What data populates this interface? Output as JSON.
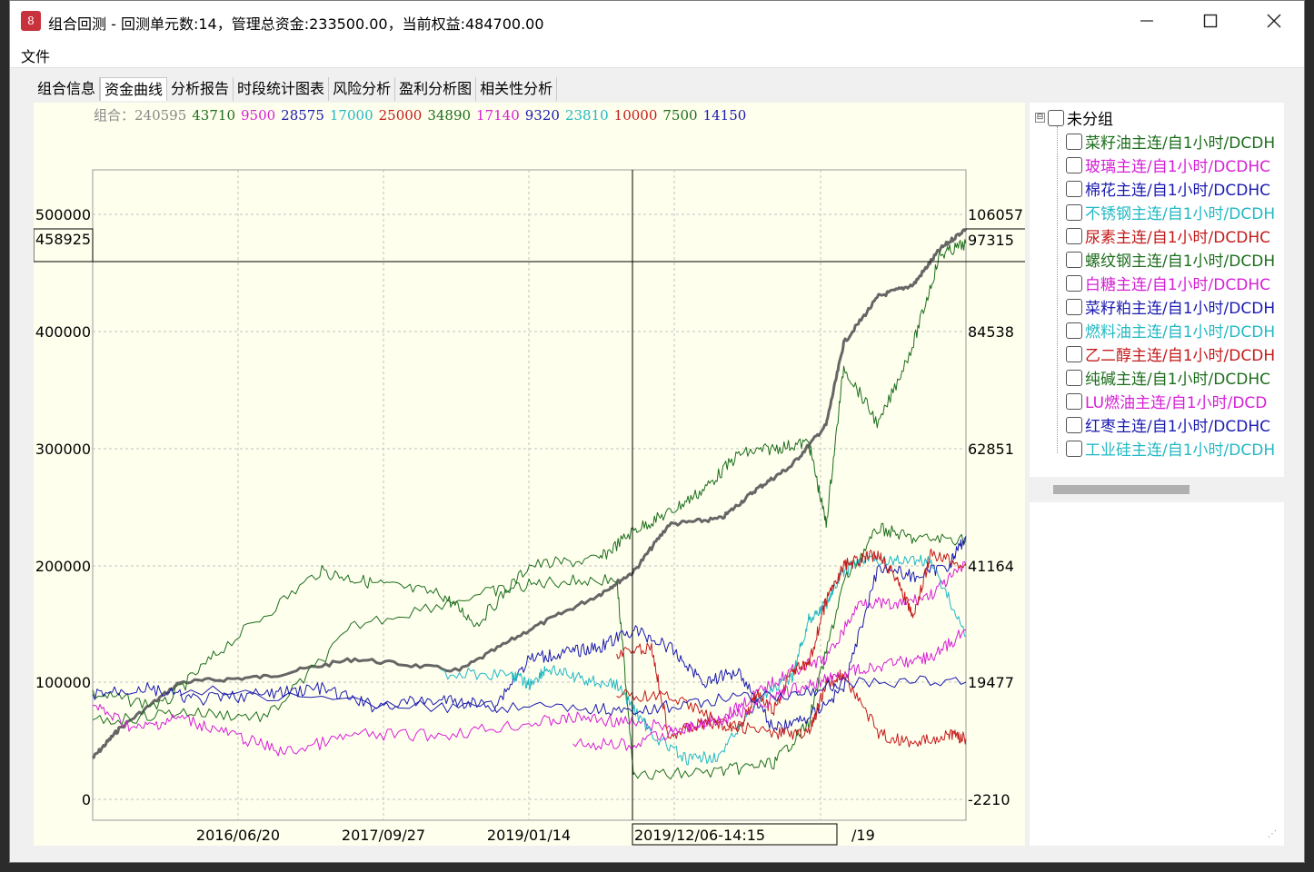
{
  "window": {
    "title": "组合回测 - 回测单元数:14，管理总资金:233500.00，当前权益:484700.00",
    "minimize_icon": "minimize-icon",
    "maximize_icon": "maximize-icon",
    "close_icon": "close-icon"
  },
  "menu": {
    "file": "文件"
  },
  "tabs": [
    "组合信息",
    "资金曲线",
    "分析报告",
    "时段统计图表",
    "风险分析",
    "盈利分析图",
    "相关性分析"
  ],
  "active_tab": 1,
  "legend": [
    {
      "text": "组合：240595",
      "color": "#888888"
    },
    {
      "text": "43710",
      "color": "#1c6e1c"
    },
    {
      "text": "9500",
      "color": "#d61fd6"
    },
    {
      "text": "28575",
      "color": "#1a1ab0"
    },
    {
      "text": "17000",
      "color": "#22b8c4"
    },
    {
      "text": "25000",
      "color": "#c41a1a"
    },
    {
      "text": "34890",
      "color": "#1c6e1c"
    },
    {
      "text": "17140",
      "color": "#d61fd6"
    },
    {
      "text": "9320",
      "color": "#1a1ab0"
    },
    {
      "text": "23810",
      "color": "#22b8c4"
    },
    {
      "text": "10000",
      "color": "#c41a1a"
    },
    {
      "text": "7500",
      "color": "#1c6e1c"
    },
    {
      "text": "14150",
      "color": "#1a1ab0"
    }
  ],
  "crosshair": {
    "left_value": "458925",
    "right_value": "97315",
    "date_label": "2019/12/06-14:15"
  },
  "chart_data": {
    "type": "line",
    "left_ticks": [
      "500000",
      "400000",
      "300000",
      "200000",
      "100000",
      "0"
    ],
    "right_ticks": [
      "106057",
      "84538",
      "62851",
      "41164",
      "19477",
      "-2210"
    ],
    "x_ticks": [
      "2016/06/20",
      "2017/09/27",
      "2019/01/14",
      "/19"
    ],
    "left_ylim": [
      0,
      500000
    ],
    "right_ylim": [
      -2210,
      106057
    ],
    "grid": true,
    "series": [
      {
        "color": "#666666",
        "width": 3,
        "axis": "left",
        "x": [
          0,
          0.03,
          0.1,
          0.2,
          0.3,
          0.42,
          0.5,
          0.58,
          0.62,
          0.66,
          0.72,
          0.76,
          0.8,
          0.84,
          0.86,
          0.9,
          0.94,
          0.97,
          1.0
        ],
        "y": [
          35000,
          60000,
          100000,
          105000,
          120000,
          110000,
          145000,
          175000,
          195000,
          235000,
          240000,
          265000,
          285000,
          320000,
          390000,
          430000,
          440000,
          470000,
          488000
        ]
      },
      {
        "color": "#1c6e1c",
        "width": 1,
        "axis": "left",
        "x": [
          0,
          0.08,
          0.15,
          0.26,
          0.32,
          0.4,
          0.44,
          0.5,
          0.58,
          0.62,
          0.66,
          0.7,
          0.74,
          0.78,
          0.82,
          0.84,
          0.86,
          0.9,
          0.94,
          0.97,
          1.0
        ],
        "y": [
          90000,
          80000,
          130000,
          195000,
          185000,
          175000,
          150000,
          200000,
          205000,
          230000,
          245000,
          265000,
          295000,
          300000,
          305000,
          235000,
          370000,
          320000,
          390000,
          465000,
          475000
        ]
      },
      {
        "color": "#1c6e1c",
        "width": 1,
        "axis": "right",
        "x": [
          0.0,
          0.1,
          0.2,
          0.3,
          0.45,
          0.52,
          0.6,
          0.62,
          0.72,
          0.78,
          0.82,
          0.86,
          0.9,
          0.94,
          1.0
        ],
        "y": [
          12000,
          14000,
          13000,
          30000,
          36000,
          38000,
          38500,
          2000,
          3000,
          4500,
          12000,
          38000,
          48000,
          46000,
          46000
        ]
      },
      {
        "color": "#d61fd6",
        "width": 1,
        "axis": "left",
        "x": [
          0,
          0.05,
          0.1,
          0.16,
          0.22,
          0.3,
          0.4,
          0.5,
          0.56,
          0.62,
          0.68,
          0.72,
          0.76,
          0.8,
          0.84,
          0.88,
          0.92,
          0.96,
          1.0
        ],
        "y": [
          80000,
          60000,
          70000,
          55000,
          40000,
          55000,
          55000,
          65000,
          70000,
          65000,
          60000,
          70000,
          90000,
          110000,
          120000,
          170000,
          165000,
          175000,
          200000
        ]
      },
      {
        "color": "#1a1ab0",
        "width": 1,
        "axis": "left",
        "x": [
          0,
          0.06,
          0.12,
          0.2,
          0.26,
          0.32,
          0.4,
          0.46,
          0.5,
          0.54,
          0.58,
          0.62,
          0.66,
          0.7,
          0.74,
          0.78,
          0.82,
          0.86,
          0.9,
          0.94,
          0.98,
          1.0
        ],
        "y": [
          90000,
          95000,
          85000,
          90000,
          95000,
          80000,
          85000,
          80000,
          120000,
          125000,
          130000,
          145000,
          130000,
          100000,
          110000,
          60000,
          70000,
          95000,
          200000,
          190000,
          200000,
          225000
        ]
      },
      {
        "color": "#22b8c4",
        "width": 1,
        "axis": "right",
        "x": [
          0.4,
          0.48,
          0.5,
          0.52,
          0.56,
          0.6,
          0.64,
          0.68,
          0.72,
          0.76,
          0.8,
          0.82,
          0.84,
          0.86,
          0.88,
          0.92,
          0.96,
          1.0
        ],
        "y": [
          21000,
          21000,
          19000,
          22000,
          20000,
          19000,
          10000,
          5000,
          6000,
          16000,
          20000,
          31000,
          34000,
          40000,
          42000,
          42000,
          42000,
          28000
        ]
      },
      {
        "color": "#c41a1a",
        "width": 1,
        "axis": "left",
        "x": [
          0.6,
          0.64,
          0.66,
          0.7,
          0.74,
          0.76,
          0.78,
          0.8,
          0.82,
          0.84,
          0.86,
          0.88,
          0.9,
          0.92,
          0.94,
          0.96,
          1.0
        ],
        "y": [
          125000,
          130000,
          55000,
          65000,
          60000,
          90000,
          75000,
          110000,
          115000,
          170000,
          200000,
          205000,
          210000,
          190000,
          155000,
          210000,
          200000
        ]
      },
      {
        "color": "#c41a1a",
        "width": 1,
        "axis": "right",
        "x": [
          0.6,
          0.66,
          0.72,
          0.78,
          0.82,
          0.84,
          0.86,
          0.9,
          0.94,
          0.98,
          1.0
        ],
        "y": [
          17000,
          17000,
          12000,
          10000,
          10000,
          19000,
          21000,
          10000,
          8000,
          10000,
          9000
        ]
      },
      {
        "color": "#d61fd6",
        "width": 1,
        "axis": "right",
        "x": [
          0.55,
          0.62,
          0.68,
          0.72,
          0.76,
          0.8,
          0.84,
          0.88,
          0.92,
          0.96,
          1.0
        ],
        "y": [
          8000,
          8000,
          11000,
          12000,
          15000,
          18000,
          20000,
          22000,
          23000,
          24000,
          29000
        ]
      },
      {
        "color": "#1a1ab0",
        "width": 1,
        "axis": "right",
        "x": [
          0.1,
          0.4,
          0.55,
          0.62,
          0.7,
          0.8,
          0.86,
          1.0
        ],
        "y": [
          18000,
          15000,
          15000,
          14000,
          16000,
          17000,
          19477,
          19477
        ]
      }
    ]
  },
  "tree": {
    "root_label": "未分组",
    "expander": "⊟",
    "items": [
      {
        "label": "菜籽油主连/自1小时/DCDH",
        "color": "#1c6e1c"
      },
      {
        "label": "玻璃主连/自1小时/DCDHC",
        "color": "#d61fd6"
      },
      {
        "label": "棉花主连/自1小时/DCDHC",
        "color": "#1a1ab0"
      },
      {
        "label": "不锈钢主连/自1小时/DCDH",
        "color": "#22b8c4"
      },
      {
        "label": "尿素主连/自1小时/DCDHC",
        "color": "#c41a1a"
      },
      {
        "label": "螺纹钢主连/自1小时/DCDH",
        "color": "#1c6e1c"
      },
      {
        "label": "白糖主连/自1小时/DCDHC",
        "color": "#d61fd6"
      },
      {
        "label": "菜籽粕主连/自1小时/DCDH",
        "color": "#1a1ab0"
      },
      {
        "label": "燃料油主连/自1小时/DCDH",
        "color": "#22b8c4"
      },
      {
        "label": "乙二醇主连/自1小时/DCDH",
        "color": "#c41a1a"
      },
      {
        "label": "纯碱主连/自1小时/DCDHC",
        "color": "#1c6e1c"
      },
      {
        "label": "LU燃油主连/自1小时/DCD",
        "color": "#d61fd6"
      },
      {
        "label": "红枣主连/自1小时/DCDHC",
        "color": "#1a1ab0"
      },
      {
        "label": "工业硅主连/自1小时/DCDH",
        "color": "#22b8c4"
      }
    ]
  }
}
